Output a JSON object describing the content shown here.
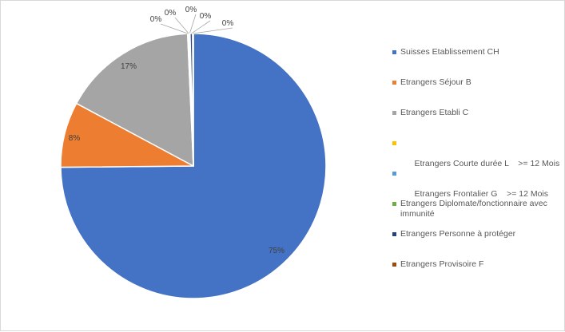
{
  "chart_data": {
    "type": "pie",
    "title": "",
    "legend_position": "right",
    "slices": [
      {
        "label": "Suisses Etablissement CH",
        "value": 75,
        "display": "75%",
        "color": "#4472C4"
      },
      {
        "label": "Etrangers Séjour B",
        "value": 8,
        "display": "8%",
        "color": "#ED7D31"
      },
      {
        "label": "Etrangers Etabli C",
        "value": 16.5,
        "display": "17%",
        "color": "#A5A5A5"
      },
      {
        "label": "Etrangers Courte durée L    >= 12 Mois",
        "value": 0.1,
        "display": "0%",
        "color": "#FFC000"
      },
      {
        "label": "Etrangers Frontalier G    >= 12 Mois",
        "value": 0.1,
        "display": "0%",
        "color": "#5B9BD5"
      },
      {
        "label": "Etrangers Diplomate/fonctionnaire avec immunité",
        "value": 0.1,
        "display": "0%",
        "color": "#70AD47"
      },
      {
        "label": "Etrangers Personne à protéger",
        "value": 0.3,
        "display": "0%",
        "color": "#264478"
      },
      {
        "label": "Etrangers Provisoire F",
        "value": 0.1,
        "display": "0%",
        "color": "#9E480E"
      }
    ]
  }
}
